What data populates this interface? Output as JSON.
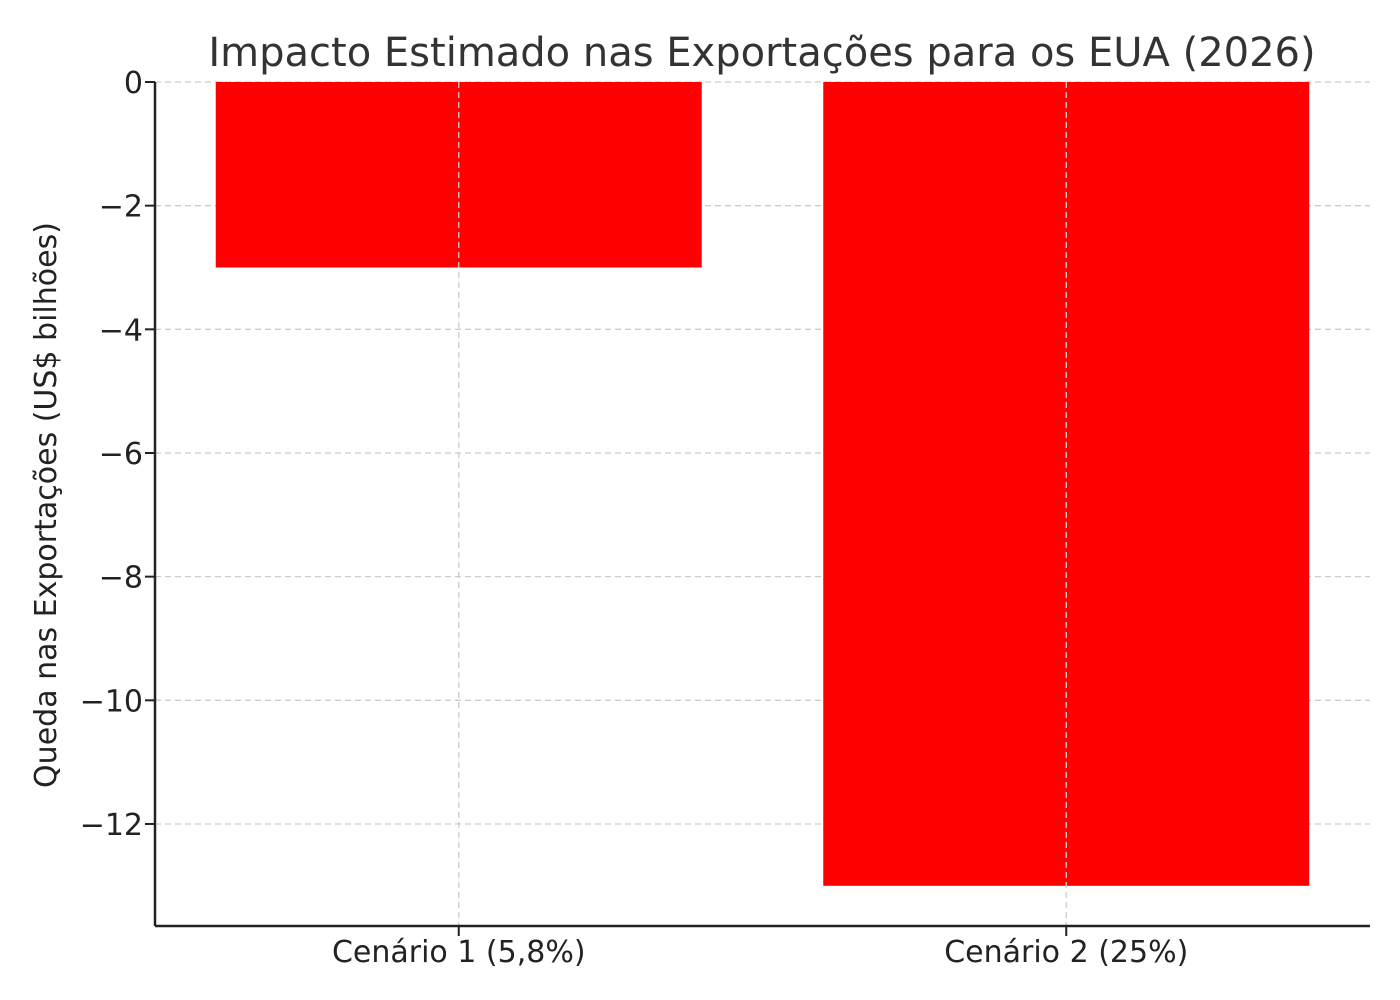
{
  "chart_data": {
    "type": "bar",
    "title": "Impacto Estimado nas Exportações para os EUA (2026)",
    "xlabel": "",
    "ylabel": "Queda nas Exportações (US$ bilhões)",
    "categories": [
      "Cenário 1 (5,8%)",
      "Cenário 2 (25%)"
    ],
    "values": [
      -3,
      -13
    ],
    "ylim": [
      -13.65,
      0
    ],
    "yticks": [
      0,
      -2,
      -4,
      -6,
      -8,
      -10,
      -12
    ],
    "ytick_labels": [
      "0",
      "−2",
      "−4",
      "−6",
      "−8",
      "−10",
      "−12"
    ],
    "grid": true,
    "bar_color": "#ff0000"
  }
}
